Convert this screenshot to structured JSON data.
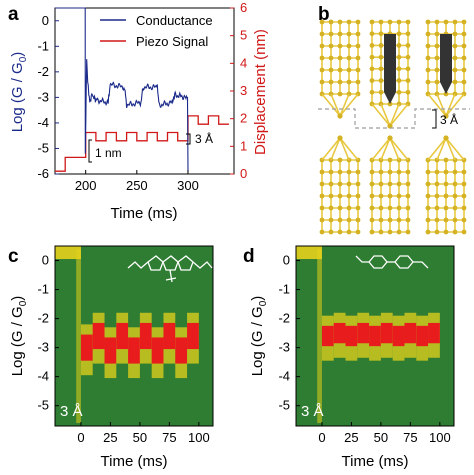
{
  "panels": {
    "a": "a",
    "b": "b",
    "c": "c",
    "d": "d"
  },
  "chart_data": [
    {
      "type": "line",
      "panel": "a",
      "xlabel": "Time (ms)",
      "ylabel_left": "Log (G / G",
      "ylabel_left_sub": "0",
      "ylabel_left_close": ")",
      "ylabel_right": "Displacement (nm)",
      "xlim": [
        170,
        345
      ],
      "ylim_left": [
        -6,
        0.5
      ],
      "ylim_right": [
        0,
        6
      ],
      "xticks": [
        "200",
        "250",
        "300"
      ],
      "xtick_values": [
        200,
        250,
        300
      ],
      "yticks_left": [
        "0",
        "-1",
        "-2",
        "-3",
        "-4",
        "-5",
        "-6"
      ],
      "ytick_left_values": [
        0,
        -1,
        -2,
        -3,
        -4,
        -5,
        -6
      ],
      "yticks_right": [
        "0",
        "1",
        "2",
        "3",
        "4",
        "5",
        "6"
      ],
      "ytick_right_values": [
        0,
        1,
        2,
        3,
        4,
        5,
        6
      ],
      "colors": {
        "conductance": "#1b2a8a",
        "piezo": "#d01818"
      },
      "series": [
        {
          "name": "Conductance",
          "x": [
            170,
            199.5,
            199.6,
            201,
            202,
            204,
            206,
            210,
            222,
            224,
            238,
            240,
            254,
            256,
            270,
            272,
            285,
            287,
            298,
            299.5,
            300
          ],
          "y": [
            0.5,
            0.5,
            -5.2,
            -1.5,
            -2.4,
            -3.2,
            -2.9,
            -3.1,
            -3.2,
            -2.5,
            -2.6,
            -3.3,
            -3.2,
            -2.6,
            -2.6,
            -3.3,
            -3.2,
            -2.9,
            -3.0,
            -3.0,
            -5.9
          ]
        },
        {
          "name": "Piezo Signal",
          "x": [
            170,
            180,
            180,
            200,
            200,
            210,
            210,
            220,
            220,
            230,
            230,
            240,
            240,
            250,
            250,
            260,
            260,
            270,
            270,
            280,
            280,
            290,
            290,
            300,
            300,
            310,
            310,
            320,
            320,
            330,
            330,
            340
          ],
          "y": [
            0.1,
            0.1,
            0.6,
            0.6,
            1.5,
            1.5,
            1.2,
            1.2,
            1.5,
            1.5,
            1.2,
            1.2,
            1.5,
            1.5,
            1.2,
            1.2,
            1.5,
            1.5,
            1.2,
            1.2,
            1.5,
            1.5,
            1.2,
            1.2,
            2.1,
            2.1,
            1.8,
            1.8,
            2.1,
            2.1,
            1.8,
            1.8
          ]
        }
      ],
      "legend": [
        "Conductance",
        "Piezo Signal"
      ],
      "legend_placement": "top-right",
      "annotations": {
        "step_3A": "3 Å",
        "step_1nm": "1 nm"
      }
    },
    {
      "type": "heatmap",
      "panel": "c",
      "xlabel": "Time (ms)",
      "ylabel": "Log (G / G",
      "ylabel_sub": "0",
      "ylabel_close": ")",
      "xlim": [
        -22,
        112
      ],
      "ylim": [
        -5.7,
        0.5
      ],
      "xticks": [
        "0",
        "25",
        "50",
        "75",
        "100"
      ],
      "xtick_values": [
        0,
        25,
        50,
        75,
        100
      ],
      "xticks_minor_labels": [
        "0",
        "25",
        "50",
        "75",
        "100"
      ],
      "xtick_labels_all": [
        "0",
        "25",
        "50",
        "75",
        "100"
      ],
      "yticks": [
        "0",
        "-1",
        "-2",
        "-3",
        "-4",
        "-5"
      ],
      "ytick_values": [
        0,
        -1,
        -2,
        -3,
        -4,
        -5
      ],
      "background_color": "#2e7d32",
      "high_density_color": "#e81c1c",
      "mid_density_color": "#e6d21c",
      "band": {
        "segments": [
          {
            "x0": 0,
            "x1": 10,
            "center": -3.0
          },
          {
            "x0": 10,
            "x1": 20,
            "center": -2.6
          },
          {
            "x0": 20,
            "x1": 30,
            "center": -3.1
          },
          {
            "x0": 30,
            "x1": 40,
            "center": -2.6
          },
          {
            "x0": 40,
            "x1": 50,
            "center": -3.1
          },
          {
            "x0": 50,
            "x1": 60,
            "center": -2.6
          },
          {
            "x0": 60,
            "x1": 70,
            "center": -3.1
          },
          {
            "x0": 70,
            "x1": 80,
            "center": -2.6
          },
          {
            "x0": 80,
            "x1": 90,
            "center": -3.1
          },
          {
            "x0": 90,
            "x1": 100,
            "center": -2.6
          }
        ],
        "half_width": 0.45
      },
      "annotation": "3 Å"
    },
    {
      "type": "heatmap",
      "panel": "d",
      "xlabel": "Time (ms)",
      "ylabel": "Log (G / G",
      "ylabel_sub": "0",
      "ylabel_close": ")",
      "xlim": [
        -22,
        112
      ],
      "ylim": [
        -5.7,
        0.5
      ],
      "xtick_values": [
        0,
        25,
        50,
        75,
        100
      ],
      "xtick_labels_all": [
        "0",
        "25",
        "50",
        "75",
        "100"
      ],
      "ytick_values": [
        0,
        -1,
        -2,
        -3,
        -4,
        -5
      ],
      "yticks": [
        "0",
        "-1",
        "-2",
        "-3",
        "-4",
        "-5"
      ],
      "background_color": "#2e7d32",
      "high_density_color": "#e81c1c",
      "mid_density_color": "#e6d21c",
      "band": {
        "segments": [
          {
            "x0": 0,
            "x1": 10,
            "center": -2.6
          },
          {
            "x0": 10,
            "x1": 20,
            "center": -2.5
          },
          {
            "x0": 20,
            "x1": 30,
            "center": -2.6
          },
          {
            "x0": 30,
            "x1": 40,
            "center": -2.5
          },
          {
            "x0": 40,
            "x1": 50,
            "center": -2.6
          },
          {
            "x0": 50,
            "x1": 60,
            "center": -2.5
          },
          {
            "x0": 60,
            "x1": 70,
            "center": -2.6
          },
          {
            "x0": 70,
            "x1": 80,
            "center": -2.5
          },
          {
            "x0": 80,
            "x1": 90,
            "center": -2.6
          },
          {
            "x0": 90,
            "x1": 100,
            "center": -2.5
          }
        ],
        "half_width": 0.35
      },
      "annotation": "3 Å"
    }
  ],
  "panel_b": {
    "annotation": "3 Å",
    "atom_color": "#d4b224",
    "bond_color": "#e8c840",
    "arrow_color": "#333333"
  }
}
